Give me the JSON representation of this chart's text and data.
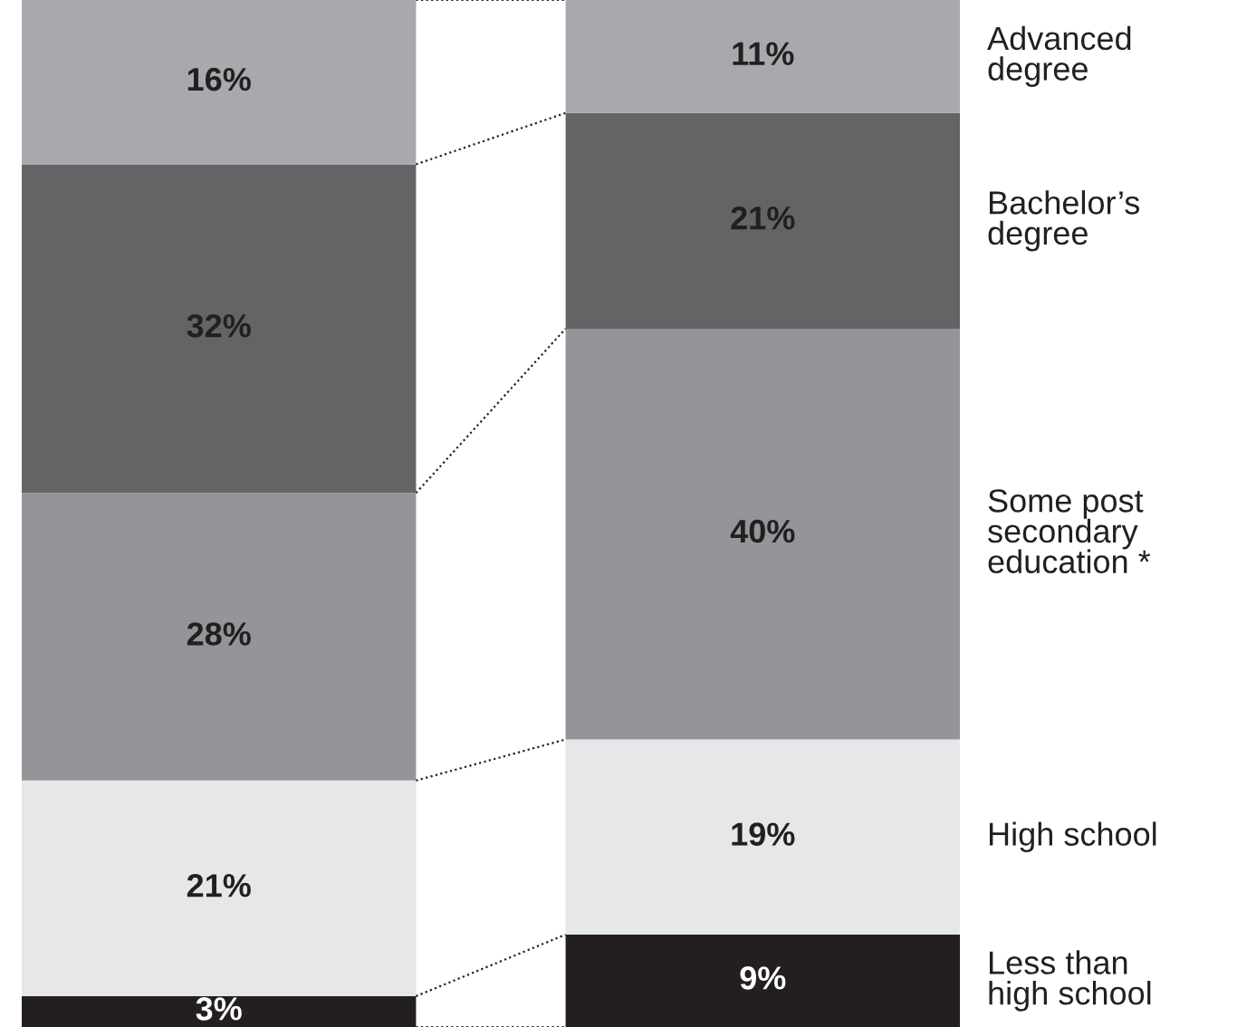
{
  "chart_data": {
    "type": "bar",
    "stacked": true,
    "categories": [
      null,
      null
    ],
    "data_labels": true,
    "series": [
      {
        "name": "Less than\nhigh school",
        "color": "#231f20",
        "values": [
          3,
          9
        ],
        "value_labels": [
          "3%",
          "9%"
        ]
      },
      {
        "name": "High school",
        "color": "#e6e7e8",
        "values": [
          21,
          19
        ],
        "value_labels": [
          "21%",
          "19%"
        ]
      },
      {
        "name": "Some post\nsecondary\neducation *",
        "color": "#939598",
        "values": [
          28,
          40
        ],
        "value_labels": [
          "28%",
          "40%"
        ]
      },
      {
        "name": "Bachelor’s\ndegree",
        "color": "#636466",
        "values": [
          32,
          21
        ],
        "value_labels": [
          "32%",
          "21%"
        ]
      },
      {
        "name": "Advanced\ndegree",
        "color": "#a7a9ac",
        "values": [
          16,
          11
        ],
        "value_labels": [
          "16%",
          "11%"
        ]
      }
    ]
  }
}
